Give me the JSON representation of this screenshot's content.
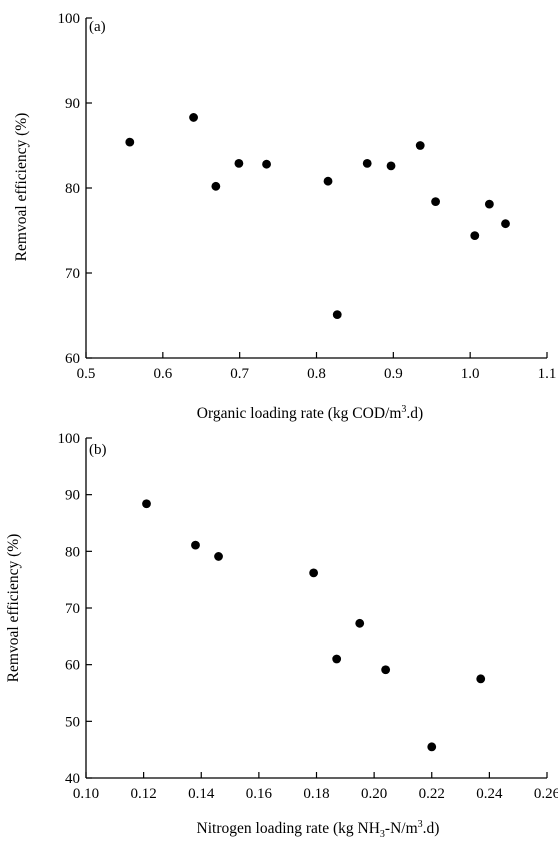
{
  "chart_data": [
    {
      "type": "scatter",
      "panel_label": "(a)",
      "xlabel": "Organic loading rate (kg COD/m",
      "xlabel_sup": "3",
      "xlabel_end": ".d)",
      "ylabel": "Remvoal efficiency (%)",
      "xlim": [
        0.5,
        1.1
      ],
      "ylim": [
        60,
        100
      ],
      "xticks": [
        0.5,
        0.6,
        0.7,
        0.8,
        0.9,
        1.0,
        1.1
      ],
      "xtick_labels": [
        "0.5",
        "0.6",
        "0.7",
        "0.8",
        "0.9",
        "1.0",
        "1.1"
      ],
      "yticks": [
        60,
        70,
        80,
        90,
        100
      ],
      "ytick_labels": [
        "60",
        "70",
        "80",
        "90",
        "100"
      ],
      "grid": false,
      "points": [
        {
          "x": 0.557,
          "y": 85.4
        },
        {
          "x": 0.64,
          "y": 88.3
        },
        {
          "x": 0.669,
          "y": 80.2
        },
        {
          "x": 0.699,
          "y": 82.9
        },
        {
          "x": 0.735,
          "y": 82.8
        },
        {
          "x": 0.815,
          "y": 80.8
        },
        {
          "x": 0.827,
          "y": 65.1
        },
        {
          "x": 0.866,
          "y": 82.9
        },
        {
          "x": 0.897,
          "y": 82.6
        },
        {
          "x": 0.935,
          "y": 85.0
        },
        {
          "x": 0.955,
          "y": 78.4
        },
        {
          "x": 1.006,
          "y": 74.4
        },
        {
          "x": 1.025,
          "y": 78.1
        },
        {
          "x": 1.046,
          "y": 75.8
        }
      ]
    },
    {
      "type": "scatter",
      "panel_label": "(b)",
      "xlabel": "Nitrogen loading rate (kg NH",
      "xlabel_sub": "3",
      "xlabel_mid": "-N/m",
      "xlabel_sup": "3",
      "xlabel_end": ".d)",
      "ylabel": "Remvoal efficiency (%)",
      "xlim": [
        0.1,
        0.26
      ],
      "ylim": [
        40,
        100
      ],
      "xticks": [
        0.1,
        0.12,
        0.14,
        0.16,
        0.18,
        0.2,
        0.22,
        0.24,
        0.26
      ],
      "xtick_labels": [
        "0.10",
        "0.12",
        "0.14",
        "0.16",
        "0.18",
        "0.20",
        "0.22",
        "0.24",
        "0.26"
      ],
      "yticks": [
        40,
        50,
        60,
        70,
        80,
        90,
        100
      ],
      "ytick_labels": [
        "40",
        "50",
        "60",
        "70",
        "80",
        "90",
        "100"
      ],
      "grid": false,
      "points": [
        {
          "x": 0.121,
          "y": 88.4
        },
        {
          "x": 0.138,
          "y": 81.1
        },
        {
          "x": 0.146,
          "y": 79.1
        },
        {
          "x": 0.179,
          "y": 76.2
        },
        {
          "x": 0.187,
          "y": 61.0
        },
        {
          "x": 0.195,
          "y": 67.3
        },
        {
          "x": 0.204,
          "y": 59.1
        },
        {
          "x": 0.22,
          "y": 45.5
        },
        {
          "x": 0.237,
          "y": 57.5
        }
      ]
    }
  ]
}
